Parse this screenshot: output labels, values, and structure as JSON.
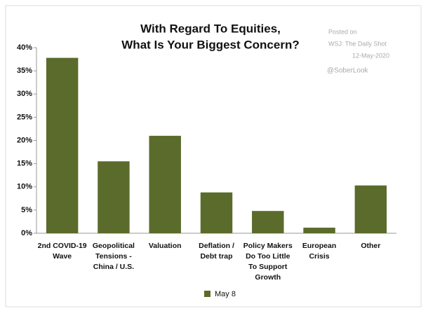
{
  "chart_data": {
    "type": "bar",
    "title": [
      "With Regard To Equities,",
      "What Is Your Biggest Concern?"
    ],
    "annotations": [
      "Posted on",
      "WSJ: The Daily Shot",
      "12-May-2020",
      "@SoberLook"
    ],
    "categories": [
      [
        "2nd COVID-19",
        "Wave"
      ],
      [
        "Geopolitical",
        "Tensions -",
        "China / U.S."
      ],
      [
        "Valuation"
      ],
      [
        "Deflation /",
        "Debt trap"
      ],
      [
        "Policy Makers",
        "Do Too Little",
        "To Support",
        "Growth"
      ],
      [
        "European",
        "Crisis"
      ],
      [
        "Other"
      ]
    ],
    "series": [
      {
        "name": "May 8",
        "color": "#5b6b2b",
        "values": [
          37.8,
          15.5,
          21,
          8.8,
          4.8,
          1.2,
          10.3
        ]
      }
    ],
    "ylim": [
      0,
      40
    ],
    "yticks": [
      {
        "value": 0,
        "label": "0%"
      },
      {
        "value": 5,
        "label": "5%"
      },
      {
        "value": 10,
        "label": "10%"
      },
      {
        "value": 15,
        "label": "15%"
      },
      {
        "value": 20,
        "label": "20%"
      },
      {
        "value": 25,
        "label": "25%"
      },
      {
        "value": 30,
        "label": "30%"
      },
      {
        "value": 35,
        "label": "35%"
      },
      {
        "value": 40,
        "label": "40%"
      }
    ],
    "grid": false
  }
}
